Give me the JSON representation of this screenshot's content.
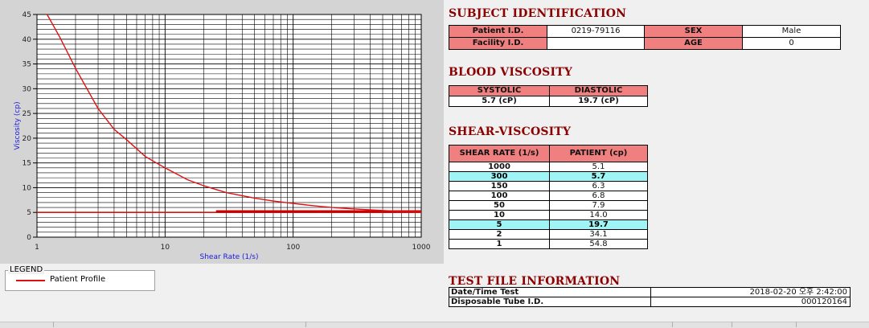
{
  "chart_data": {
    "type": "line",
    "xlabel": "Shear Rate (1/s)",
    "ylabel": "Viscosity (cp)",
    "xscale": "log",
    "xlim": [
      1,
      1000
    ],
    "ylim": [
      0,
      45
    ],
    "x_ticks": [
      "1",
      "10",
      "100",
      "1000"
    ],
    "y_ticks": [
      "0",
      "5",
      "10",
      "15",
      "20",
      "25",
      "30",
      "35",
      "40",
      "45"
    ],
    "grid": true,
    "series": [
      {
        "name": "Patient Profile",
        "color": "#e01010",
        "x": [
          1.2,
          1.5,
          2,
          3,
          4,
          5,
          7,
          10,
          15,
          20,
          30,
          50,
          70,
          100,
          150,
          200,
          300,
          500,
          700,
          1000
        ],
        "y": [
          45,
          40.5,
          34.1,
          26.0,
          21.8,
          19.7,
          16.3,
          14.0,
          11.6,
          10.4,
          9.0,
          7.9,
          7.3,
          6.8,
          6.3,
          6.0,
          5.7,
          5.4,
          5.2,
          5.1
        ]
      }
    ],
    "reference_lines": [
      {
        "y": 5.0,
        "color": "#e01010"
      },
      {
        "x_from": 25,
        "x_to": 1000,
        "y": 5.2,
        "color": "#cc0000"
      }
    ]
  },
  "legend": {
    "title": "LEGEND",
    "label": "Patient Profile"
  },
  "subject": {
    "heading": "SUBJECT IDENTIFICATION",
    "patient_id_label": "Patient I.D.",
    "patient_id": "0219-79116",
    "sex_label": "SEX",
    "sex": "Male",
    "facility_id_label": "Facility I.D.",
    "facility_id": "",
    "age_label": "AGE",
    "age": "0"
  },
  "blood_viscosity": {
    "heading": "BLOOD VISCOSITY",
    "systolic_label": "SYSTOLIC",
    "diastolic_label": "DIASTOLIC",
    "systolic": "5.7 (cP)",
    "diastolic": "19.7 (cP)"
  },
  "shear_viscosity": {
    "heading": "SHEAR-VISCOSITY",
    "col1": "SHEAR RATE (1/s)",
    "col2": "PATIENT (cp)",
    "rows": [
      {
        "rate": "1000",
        "value": "5.1"
      },
      {
        "rate": "300",
        "value": "5.7"
      },
      {
        "rate": "150",
        "value": "6.3"
      },
      {
        "rate": "100",
        "value": "6.8"
      },
      {
        "rate": "50",
        "value": "7.9"
      },
      {
        "rate": "10",
        "value": "14.0"
      },
      {
        "rate": "5",
        "value": "19.7"
      },
      {
        "rate": "2",
        "value": "34.1"
      },
      {
        "rate": "1",
        "value": "54.8"
      }
    ]
  },
  "test_file": {
    "heading": "TEST FILE INFORMATION",
    "date_label": "Date/Time Test",
    "date_value": "2018-02-20  오후 2:42:00",
    "tube_label": "Disposable Tube I.D.",
    "tube_value": "000120164"
  },
  "colors": {
    "header_red": "#f08080",
    "highlight_cyan": "#9ff5f5",
    "heading": "#8b0000",
    "curve": "#e01010"
  }
}
